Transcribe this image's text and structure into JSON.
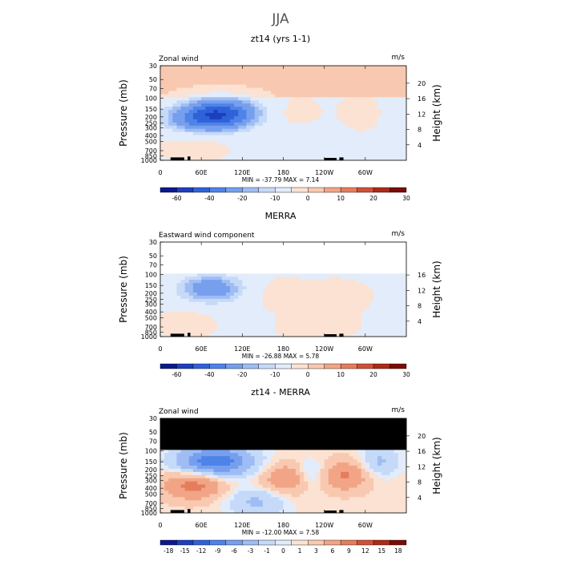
{
  "page_title": "JJA",
  "cbar_colors_a": [
    "#0a1a8c",
    "#1c3fbf",
    "#2f62d9",
    "#4e83e8",
    "#779fee",
    "#9fbdf4",
    "#c5daf8",
    "#e2ecfb",
    "#fbe2d2",
    "#f8c9b0",
    "#f2a586",
    "#e57d5c",
    "#cf5235",
    "#ad2a18",
    "#7a0c06"
  ],
  "cbar_colors_b": [
    "#0a1a8c",
    "#1c3fbf",
    "#2f62d9",
    "#4e83e8",
    "#779fee",
    "#9fbdf4",
    "#c5daf8",
    "#e2ecfb",
    "#fbe2d2",
    "#f8c9b0",
    "#f2a586",
    "#e57d5c",
    "#cf5235",
    "#ad2a18",
    "#7a0c06"
  ],
  "chart_data": [
    {
      "type": "heatmap",
      "title": "zt14 (yrs 1-1)",
      "left_label": "Zonal wind",
      "units": "m/s",
      "ylabel": "Pressure (mb)",
      "ylabel_right": "Height (km)",
      "x_ticks": [
        "0",
        "60E",
        "120E",
        "180",
        "120W",
        "60W"
      ],
      "y_ticks": [
        "30",
        "50",
        "70",
        "100",
        "150",
        "200",
        "250",
        "300",
        "400",
        "500",
        "700",
        "850",
        "1000"
      ],
      "height_ticks": [
        "20",
        "16",
        "12",
        "8",
        "4"
      ],
      "min_max": "MIN = -37.79   MAX =    7.14",
      "colorbar_labels": [
        "-60",
        "-40",
        "-20",
        "-10",
        "0",
        "10",
        "20",
        "30"
      ],
      "masked_above_mb": 0,
      "blobs": [
        {
          "x": 90,
          "p": 170,
          "v": -37,
          "r": 55
        },
        {
          "x": 60,
          "p": 230,
          "v": -22,
          "r": 60
        },
        {
          "x": 200,
          "p": 180,
          "v": 5,
          "r": 30
        },
        {
          "x": 290,
          "p": 170,
          "v": 5,
          "r": 25
        },
        {
          "x": 50,
          "p": 550,
          "v": 6,
          "r": 45
        },
        {
          "x": 210,
          "p": 500,
          "v": -8,
          "r": 40
        }
      ]
    },
    {
      "type": "heatmap",
      "title": "MERRA",
      "left_label": "Eastward wind component",
      "units": "m/s",
      "ylabel": "Pressure (mb)",
      "ylabel_right": "Height (km)",
      "x_ticks": [
        "0",
        "60E",
        "120E",
        "180",
        "120W",
        "60W"
      ],
      "y_ticks": [
        "30",
        "50",
        "70",
        "100",
        "150",
        "200",
        "250",
        "300",
        "400",
        "500",
        "700",
        "850",
        "1000"
      ],
      "height_ticks": [
        "16",
        "12",
        "8",
        "4"
      ],
      "min_max": "MIN = -26.88   MAX =    5.78",
      "colorbar_labels": [
        "-60",
        "-40",
        "-20",
        "-10",
        "0",
        "10",
        "20",
        "30"
      ],
      "masked_above_mb": 100,
      "blobs": [
        {
          "x": 75,
          "p": 170,
          "v": -26,
          "r": 50
        },
        {
          "x": 170,
          "p": 200,
          "v": 4,
          "r": 45
        },
        {
          "x": 260,
          "p": 220,
          "v": 4,
          "r": 45
        },
        {
          "x": 40,
          "p": 600,
          "v": 5,
          "r": 35
        },
        {
          "x": 230,
          "p": 700,
          "v": 3,
          "r": 60
        }
      ]
    },
    {
      "type": "heatmap",
      "title": "zt14 - MERRA",
      "left_label": "Zonal wind",
      "units": "m/s",
      "ylabel": "Pressure (mb)",
      "ylabel_right": "Height (km)",
      "x_ticks": [
        "0",
        "60E",
        "120E",
        "180",
        "120W",
        "60W"
      ],
      "y_ticks": [
        "30",
        "50",
        "70",
        "100",
        "150",
        "200",
        "250",
        "300",
        "400",
        "500",
        "700",
        "850",
        "1000"
      ],
      "height_ticks": [
        "20",
        "16",
        "12",
        "8",
        "4"
      ],
      "min_max": "MIN = -12.00   MAX =    7.58",
      "colorbar_labels": [
        "-18",
        "-15",
        "-12",
        "-9",
        "-6",
        "-3",
        "-1",
        "0",
        "1",
        "3",
        "6",
        "9",
        "12",
        "15",
        "18"
      ],
      "masked_above_mb": 100,
      "blobs": [
        {
          "x": 80,
          "p": 150,
          "v": -12,
          "r": 55
        },
        {
          "x": 50,
          "p": 350,
          "v": 7,
          "r": 45
        },
        {
          "x": 190,
          "p": 280,
          "v": 6,
          "r": 40
        },
        {
          "x": 270,
          "p": 250,
          "v": 6,
          "r": 35
        },
        {
          "x": 220,
          "p": 250,
          "v": -5,
          "r": 25
        },
        {
          "x": 140,
          "p": 650,
          "v": -4,
          "r": 45
        },
        {
          "x": 320,
          "p": 150,
          "v": -4,
          "r": 30
        }
      ]
    }
  ]
}
